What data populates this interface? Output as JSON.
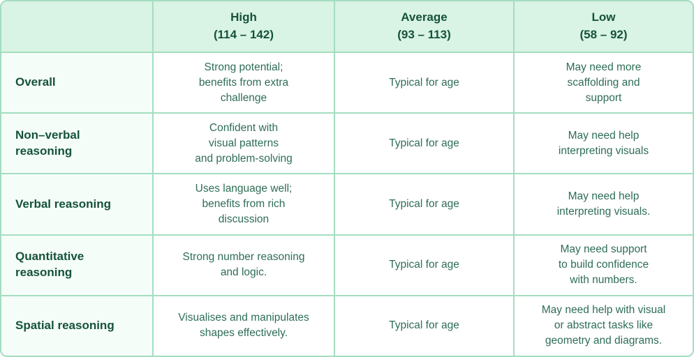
{
  "table": {
    "columns": {
      "corner": "",
      "high": "High\n(114 – 142)",
      "average": "Average\n(93 – 113)",
      "low": "Low\n(58 – 92)"
    },
    "rows": [
      {
        "label": "Overall",
        "high": "Strong potential;\nbenefits from extra\nchallenge",
        "average": "Typical for age",
        "low": "May need more\nscaffolding and\nsupport"
      },
      {
        "label": "Non–verbal\nreasoning",
        "high": "Confident with\nvisual patterns\nand problem-solving",
        "average": "Typical for age",
        "low": "May need help\ninterpreting visuals"
      },
      {
        "label": "Verbal reasoning",
        "high": "Uses language well;\nbenefits from rich\ndiscussion",
        "average": "Typical for age",
        "low": "May need help\ninterpreting visuals."
      },
      {
        "label": "Quantitative\nreasoning",
        "high": "Strong number reasoning\nand logic.",
        "average": "Typical for age",
        "low": "May need support\nto build confidence\nwith numbers."
      },
      {
        "label": "Spatial reasoning",
        "high": "Visualises and manipulates\nshapes effectively.",
        "average": "Typical for age",
        "low": "May need help with visual\nor abstract tasks like\ngeometry and diagrams."
      }
    ]
  },
  "colors": {
    "grid_line": "#a4ddc0",
    "header_bg": "#d9f3e4",
    "label_column_bg": "#f5fdf9",
    "data_cell_bg": "#ffffff",
    "heading_text": "#15523c",
    "body_text": "#2e6d55"
  }
}
